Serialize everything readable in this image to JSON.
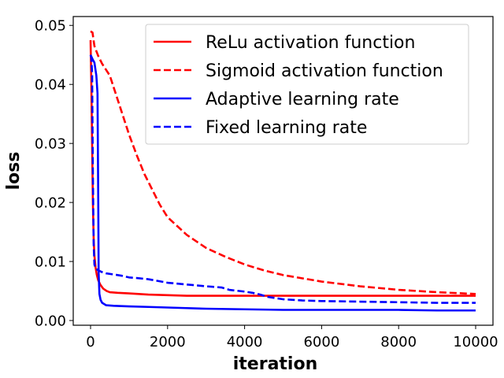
{
  "chart_data": {
    "type": "line",
    "xlabel": "iteration",
    "ylabel": "loss",
    "xlim": [
      -450,
      10450
    ],
    "ylim": [
      -0.0008,
      0.0515
    ],
    "xticks": [
      0,
      2000,
      4000,
      6000,
      8000,
      10000
    ],
    "xtick_labels": [
      "0",
      "2000",
      "4000",
      "6000",
      "8000",
      "10000"
    ],
    "yticks": [
      0.0,
      0.01,
      0.02,
      0.03,
      0.04,
      0.05
    ],
    "ytick_labels": [
      "0.00",
      "0.01",
      "0.02",
      "0.03",
      "0.04",
      "0.05"
    ],
    "grid": false,
    "legend_position": "top-right",
    "series": [
      {
        "name": "ReLu activation function",
        "color": "#ff0000",
        "style": "solid",
        "x": [
          0,
          20,
          40,
          60,
          80,
          100,
          130,
          160,
          200,
          260,
          330,
          420,
          500,
          700,
          1000,
          1500,
          2000,
          2500,
          3000,
          4000,
          5000,
          6000,
          7000,
          8000,
          9000,
          10000
        ],
        "y": [
          0.0475,
          0.04,
          0.03,
          0.02,
          0.014,
          0.011,
          0.009,
          0.0078,
          0.0068,
          0.006,
          0.0054,
          0.005,
          0.0048,
          0.0047,
          0.0046,
          0.0044,
          0.0043,
          0.0042,
          0.0042,
          0.0042,
          0.0042,
          0.0042,
          0.0042,
          0.0042,
          0.0042,
          0.0042
        ]
      },
      {
        "name": "Sigmoid activation function",
        "color": "#ff0000",
        "style": "dashed",
        "x": [
          0,
          50,
          100,
          200,
          300,
          400,
          500,
          600,
          700,
          800,
          1000,
          1200,
          1400,
          1600,
          1800,
          2000,
          2500,
          3000,
          3500,
          4000,
          4500,
          5000,
          6000,
          7000,
          8000,
          9000,
          10000
        ],
        "y": [
          0.049,
          0.0488,
          0.0465,
          0.0448,
          0.0435,
          0.0425,
          0.0415,
          0.0395,
          0.0375,
          0.0355,
          0.0315,
          0.028,
          0.0248,
          0.0222,
          0.0196,
          0.0175,
          0.0145,
          0.0123,
          0.0108,
          0.0095,
          0.0085,
          0.0077,
          0.0066,
          0.0058,
          0.0052,
          0.0048,
          0.0045
        ]
      },
      {
        "name": "Adaptive learning rate",
        "color": "#0000ff",
        "style": "solid",
        "x": [
          0,
          50,
          100,
          150,
          180,
          200,
          210,
          230,
          260,
          300,
          400,
          600,
          1000,
          1500,
          2000,
          2500,
          3000,
          4000,
          5000,
          6000,
          7000,
          8000,
          9000,
          10000
        ],
        "y": [
          0.045,
          0.0443,
          0.0437,
          0.0415,
          0.0385,
          0.02,
          0.008,
          0.0045,
          0.0035,
          0.003,
          0.0026,
          0.0025,
          0.0024,
          0.0023,
          0.0022,
          0.0021,
          0.002,
          0.0019,
          0.0018,
          0.0018,
          0.0018,
          0.0018,
          0.0017,
          0.0017
        ]
      },
      {
        "name": "Fixed learning rate",
        "color": "#0000ff",
        "style": "dashed",
        "x": [
          0,
          20,
          40,
          60,
          80,
          100,
          130,
          200,
          300,
          400,
          600,
          800,
          1000,
          1200,
          1500,
          2000,
          2500,
          3000,
          3400,
          3600,
          4000,
          4200,
          4400,
          4600,
          5000,
          5500,
          6000,
          7000,
          8000,
          9000,
          10000
        ],
        "y": [
          0.045,
          0.0445,
          0.042,
          0.025,
          0.013,
          0.0095,
          0.0088,
          0.0085,
          0.0082,
          0.008,
          0.0078,
          0.0076,
          0.0073,
          0.0072,
          0.007,
          0.0064,
          0.0061,
          0.0058,
          0.0056,
          0.0052,
          0.0049,
          0.0047,
          0.0044,
          0.004,
          0.0036,
          0.0034,
          0.0033,
          0.0032,
          0.0031,
          0.003,
          0.003
        ]
      }
    ]
  }
}
